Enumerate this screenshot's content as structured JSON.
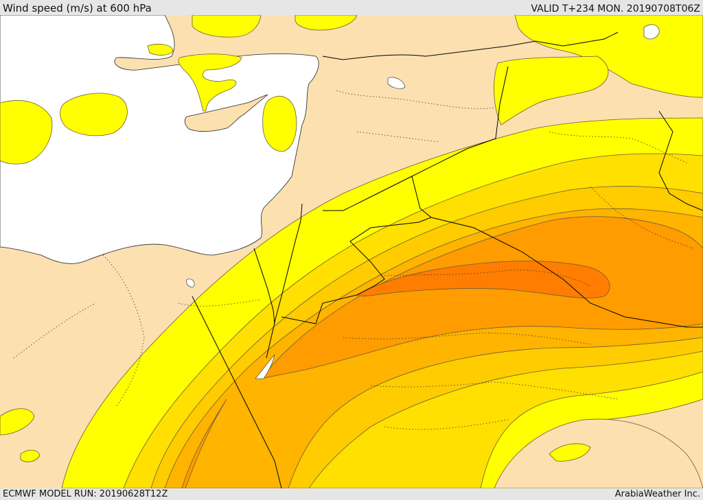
{
  "header": {
    "title": "Wind speed (m/s) at 600 hPa",
    "valid": "VALID T+234 MON. 20190708T06Z"
  },
  "footer": {
    "model_run": "ECMWF MODEL RUN: 20190628T12Z",
    "credit": "ArabiaWeather Inc."
  },
  "colors": {
    "land": "#fde0b0",
    "sea": "#ffffff",
    "level_1": "#ffff00",
    "level_2": "#ffe000",
    "level_3": "#ffcc00",
    "level_4": "#ffb400",
    "level_5": "#ff9c00",
    "level_6": "#ff7d00",
    "contour": "#6a5a3a",
    "border": "#000000"
  }
}
